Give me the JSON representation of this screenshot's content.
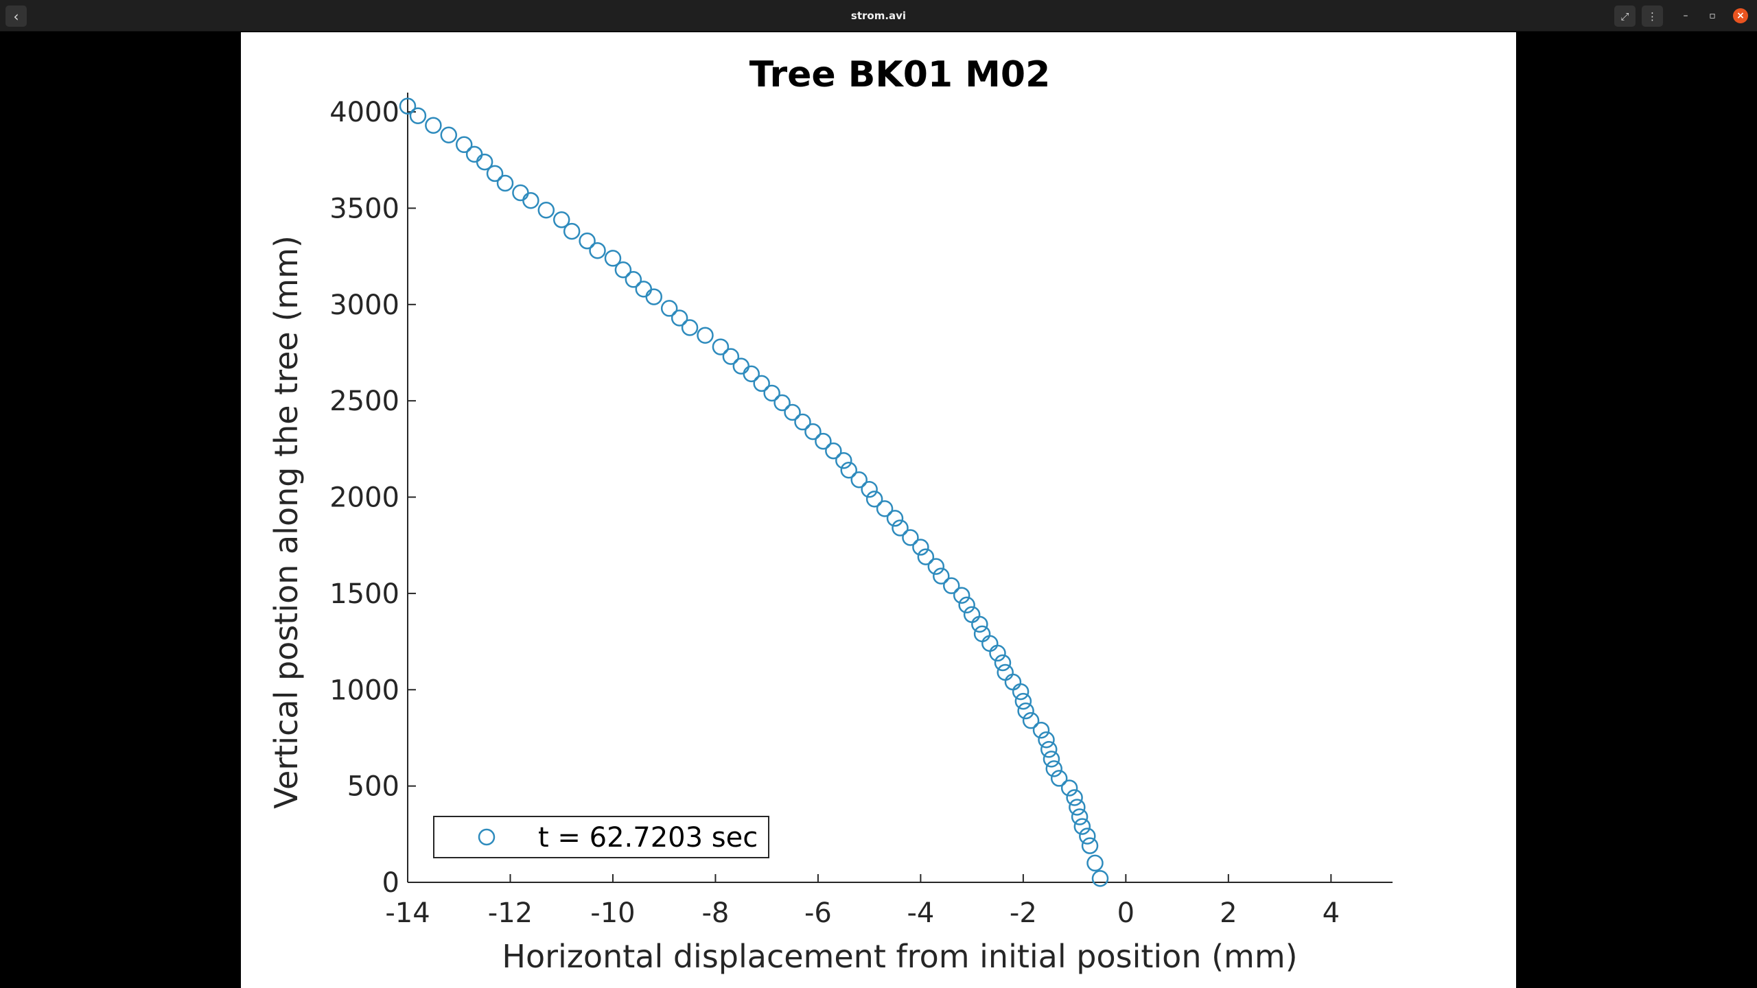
{
  "window": {
    "title": "strom.avi",
    "back_icon": "chevron-left-icon",
    "fullscreen_icon": "expand-icon",
    "menu_icon": "kebab-menu-icon",
    "minimize_icon": "minimize-icon",
    "restore_icon": "restore-icon",
    "close_icon": "close-icon",
    "close_color": "#e95420"
  },
  "chart_data": {
    "type": "scatter",
    "title": "Tree BK01 M02",
    "xlabel": "Horizontal displacement from initial position (mm)",
    "ylabel": "Vertical postion along the tree (mm)",
    "xlim": [
      -14,
      5.2
    ],
    "ylim": [
      0,
      4100
    ],
    "xticks": [
      -14,
      -12,
      -10,
      -8,
      -6,
      -4,
      -2,
      0,
      2,
      4
    ],
    "xtick_labels": [
      "-14",
      "-12",
      "-10",
      "-8",
      "-6",
      "-4",
      "-2",
      "0",
      "2",
      "4"
    ],
    "yticks": [
      0,
      500,
      1000,
      1500,
      2000,
      2500,
      3000,
      3500,
      4000
    ],
    "ytick_labels": [
      "0",
      "500",
      "1000",
      "1500",
      "2000",
      "2500",
      "3000",
      "3500",
      "4000"
    ],
    "grid": false,
    "legend_position": "bottom-left",
    "marker": "open-circle",
    "marker_color": "#2e8bbd",
    "series": [
      {
        "name": "t = 62.7203 sec",
        "x": [
          -14.0,
          -13.8,
          -13.5,
          -13.2,
          -12.9,
          -12.7,
          -12.5,
          -12.3,
          -12.1,
          -11.8,
          -11.6,
          -11.3,
          -11.0,
          -10.8,
          -10.5,
          -10.3,
          -10.0,
          -9.8,
          -9.6,
          -9.4,
          -9.2,
          -8.9,
          -8.7,
          -8.5,
          -8.2,
          -7.9,
          -7.7,
          -7.5,
          -7.3,
          -7.1,
          -6.9,
          -6.7,
          -6.5,
          -6.3,
          -6.1,
          -5.9,
          -5.7,
          -5.5,
          -5.4,
          -5.2,
          -5.0,
          -4.9,
          -4.7,
          -4.5,
          -4.4,
          -4.2,
          -4.0,
          -3.9,
          -3.7,
          -3.6,
          -3.4,
          -3.2,
          -3.1,
          -3.0,
          -2.85,
          -2.8,
          -2.65,
          -2.5,
          -2.4,
          -2.35,
          -2.2,
          -2.05,
          -2.0,
          -1.95,
          -1.85,
          -1.65,
          -1.55,
          -1.5,
          -1.45,
          -1.4,
          -1.3,
          -1.1,
          -1.0,
          -0.95,
          -0.9,
          -0.85,
          -0.75,
          -0.7,
          -0.6,
          -0.5
        ],
        "y": [
          4030,
          3980,
          3930,
          3880,
          3830,
          3780,
          3740,
          3680,
          3630,
          3580,
          3540,
          3490,
          3440,
          3380,
          3330,
          3280,
          3240,
          3180,
          3130,
          3080,
          3040,
          2980,
          2930,
          2880,
          2840,
          2780,
          2730,
          2680,
          2640,
          2590,
          2540,
          2490,
          2440,
          2390,
          2340,
          2290,
          2240,
          2190,
          2140,
          2090,
          2040,
          1990,
          1940,
          1890,
          1840,
          1790,
          1740,
          1690,
          1640,
          1590,
          1540,
          1490,
          1440,
          1390,
          1340,
          1290,
          1240,
          1190,
          1140,
          1090,
          1040,
          990,
          940,
          890,
          840,
          790,
          740,
          690,
          640,
          590,
          540,
          490,
          440,
          390,
          340,
          290,
          240,
          190,
          100,
          20
        ]
      }
    ]
  }
}
